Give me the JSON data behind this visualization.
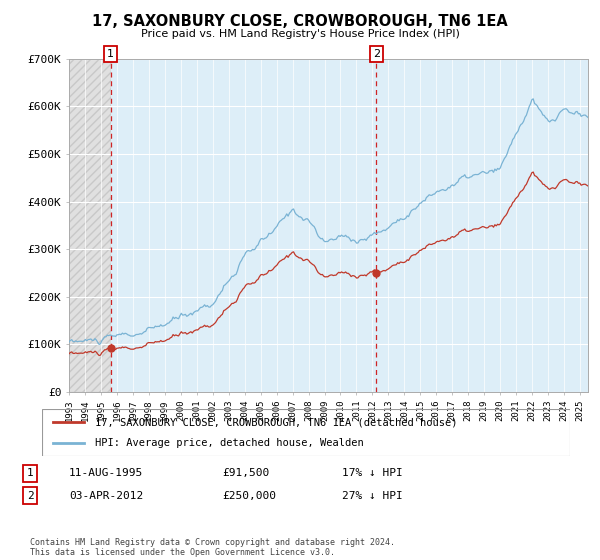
{
  "title": "17, SAXONBURY CLOSE, CROWBOROUGH, TN6 1EA",
  "subtitle": "Price paid vs. HM Land Registry's House Price Index (HPI)",
  "ylabel_ticks": [
    "£0",
    "£100K",
    "£200K",
    "£300K",
    "£400K",
    "£500K",
    "£600K",
    "£700K"
  ],
  "ylim": [
    0,
    700000
  ],
  "xlim_start": 1993.0,
  "xlim_end": 2025.5,
  "sale1_year": 1995.6,
  "sale1_price": 91500,
  "sale2_year": 2012.25,
  "sale2_price": 250000,
  "hpi_color": "#7ab3d4",
  "price_color": "#c0392b",
  "marker_color": "#c0392b",
  "dashed_color": "#cc0000",
  "legend_line1": "17, SAXONBURY CLOSE, CROWBOROUGH, TN6 1EA (detached house)",
  "legend_line2": "HPI: Average price, detached house, Wealden",
  "ann1_num": "1",
  "ann1_date": "11-AUG-1995",
  "ann1_price": "£91,500",
  "ann1_hpi": "17% ↓ HPI",
  "ann2_num": "2",
  "ann2_date": "03-APR-2012",
  "ann2_price": "£250,000",
  "ann2_hpi": "27% ↓ HPI",
  "footer": "Contains HM Land Registry data © Crown copyright and database right 2024.\nThis data is licensed under the Open Government Licence v3.0.",
  "plot_bg_right": "#ddeeff",
  "plot_bg_left_hatch": "#e0e0e0",
  "grid_color": "#ffffff"
}
